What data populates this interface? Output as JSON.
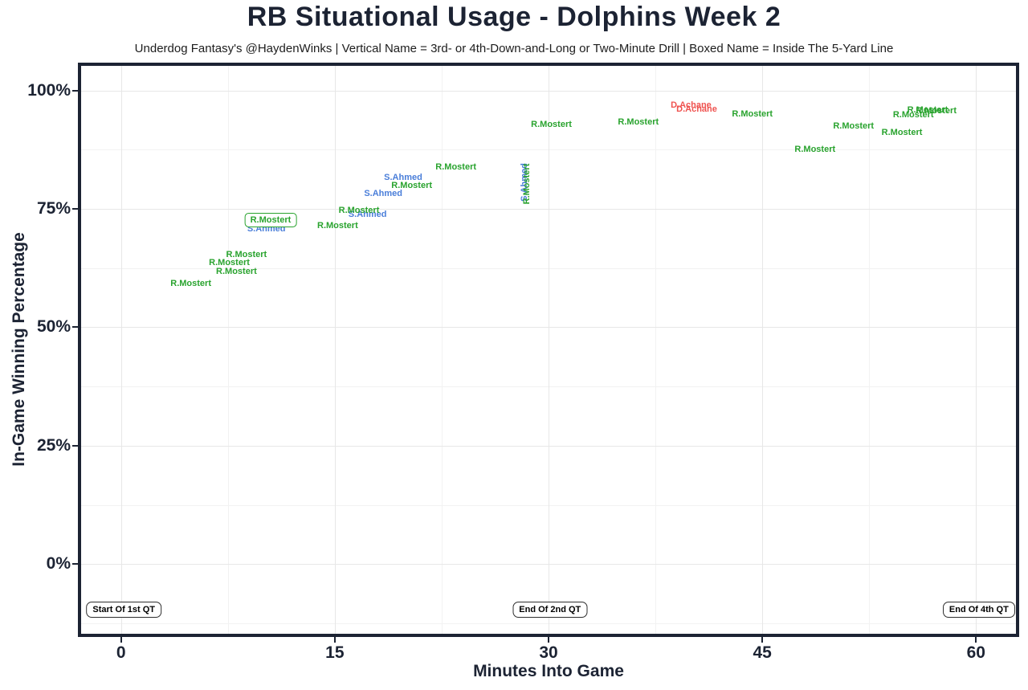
{
  "chart_data": {
    "type": "scatter",
    "title": "RB Situational Usage - Dolphins Week 2",
    "subtitle": "Underdog Fantasy's @HaydenWinks | Vertical Name = 3rd- or 4th-Down-and-Long or Two-Minute Drill | Boxed Name = Inside The 5-Yard Line",
    "xlabel": "Minutes Into Game",
    "ylabel": "In-Game Winning Percentage",
    "xlim": [
      -2.8,
      62.8
    ],
    "ylim": [
      -14.7,
      105.2
    ],
    "grid": "major and minor, light gray, white background",
    "legend_position": "none",
    "x_ticks": [
      {
        "value": 0,
        "label": "0"
      },
      {
        "value": 15,
        "label": "15"
      },
      {
        "value": 30,
        "label": "30"
      },
      {
        "value": 45,
        "label": "45"
      },
      {
        "value": 60,
        "label": "60"
      }
    ],
    "y_ticks": [
      {
        "value": 0,
        "label": "0%"
      },
      {
        "value": 25,
        "label": "25%"
      },
      {
        "value": 50,
        "label": "50%"
      },
      {
        "value": 75,
        "label": "75%"
      },
      {
        "value": 100,
        "label": "100%"
      }
    ],
    "x_minor_gridlines": [
      7.5,
      22.5,
      37.5,
      52.5
    ],
    "y_minor_gridlines": [
      -12.5,
      12.5,
      37.5,
      62.5,
      87.5
    ],
    "series": [
      {
        "name": "S.Ahmed",
        "color": "#4a7ed9",
        "points": [
          {
            "x": 10.2,
            "y": 70.7,
            "style": "normal"
          },
          {
            "x": 17.3,
            "y": 73.9,
            "style": "normal"
          },
          {
            "x": 18.4,
            "y": 78.3,
            "style": "normal"
          },
          {
            "x": 19.8,
            "y": 81.7,
            "style": "normal"
          },
          {
            "x": 28.3,
            "y": 80.6,
            "style": "vertical"
          }
        ]
      },
      {
        "name": "R.Mostert",
        "color": "#29a32e",
        "points": [
          {
            "x": 4.9,
            "y": 59.2,
            "style": "normal"
          },
          {
            "x": 7.6,
            "y": 63.6,
            "style": "normal"
          },
          {
            "x": 8.8,
            "y": 65.3,
            "style": "normal"
          },
          {
            "x": 8.1,
            "y": 61.8,
            "style": "normal"
          },
          {
            "x": 10.5,
            "y": 72.6,
            "style": "boxed"
          },
          {
            "x": 15.2,
            "y": 71.5,
            "style": "normal"
          },
          {
            "x": 16.7,
            "y": 74.6,
            "style": "normal"
          },
          {
            "x": 20.4,
            "y": 80.0,
            "style": "normal"
          },
          {
            "x": 23.5,
            "y": 83.9,
            "style": "normal"
          },
          {
            "x": 28.5,
            "y": 80.3,
            "style": "vertical"
          },
          {
            "x": 30.2,
            "y": 92.9,
            "style": "normal"
          },
          {
            "x": 36.3,
            "y": 93.4,
            "style": "normal"
          },
          {
            "x": 44.3,
            "y": 95.1,
            "style": "normal"
          },
          {
            "x": 48.7,
            "y": 87.5,
            "style": "normal"
          },
          {
            "x": 51.4,
            "y": 92.4,
            "style": "normal"
          },
          {
            "x": 54.8,
            "y": 91.2,
            "style": "normal"
          },
          {
            "x": 55.6,
            "y": 94.9,
            "style": "normal"
          },
          {
            "x": 56.6,
            "y": 95.9,
            "style": "normal"
          },
          {
            "x": 57.2,
            "y": 95.7,
            "style": "normal"
          }
        ]
      },
      {
        "name": "D.Achane",
        "color": "#ef5350",
        "points": [
          {
            "x": 40.0,
            "y": 96.9,
            "style": "normal"
          },
          {
            "x": 40.4,
            "y": 96.1,
            "style": "normal"
          }
        ]
      }
    ],
    "annotations": [
      {
        "label": "Start Of 1st QT",
        "x": 0.2,
        "y": -9.6
      },
      {
        "label": "End Of 2nd QT",
        "x": 30.1,
        "y": -9.6
      },
      {
        "label": "End Of 4th QT",
        "x": 60.2,
        "y": -9.6
      }
    ],
    "colors": {
      "axis_and_border": "#1c2333",
      "major_gridline": "#e7e7e7",
      "minor_gridline": "#f2f2f2",
      "annotation_border": "#2e2e2e"
    }
  }
}
